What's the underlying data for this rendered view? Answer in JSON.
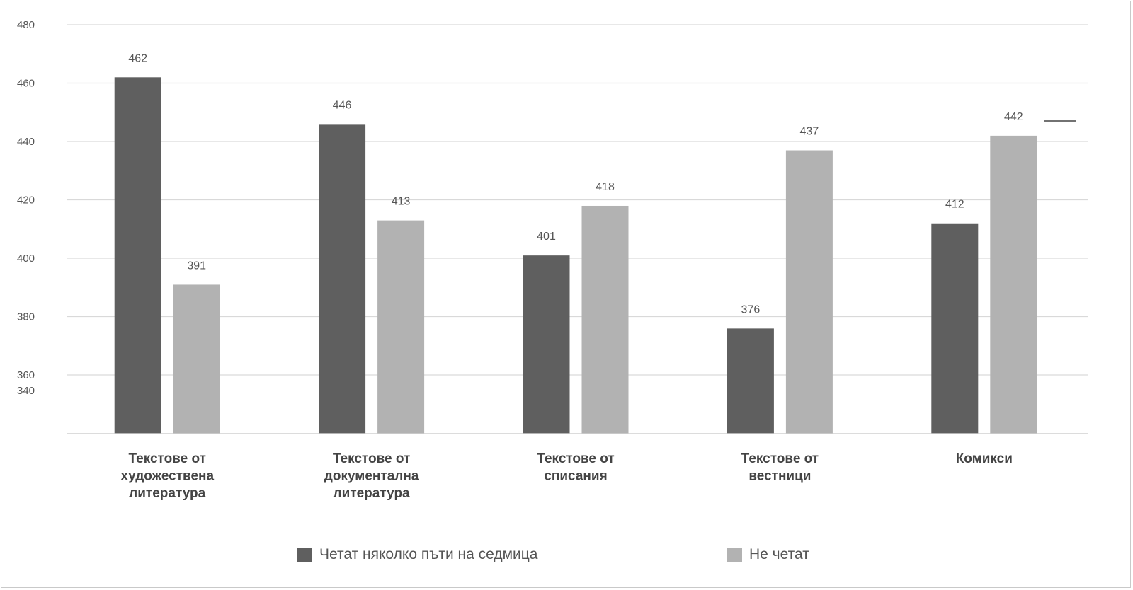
{
  "chart_data": {
    "type": "bar",
    "title": "",
    "xlabel": "",
    "ylabel": "",
    "categories": [
      "Текстове от художествена литература",
      "Текстове от документална литература",
      "Текстове от списания",
      "Текстове от вестници",
      "Комикси"
    ],
    "category_lines": [
      [
        "Текстове от",
        "художествена",
        "литература"
      ],
      [
        "Текстове от",
        "документална",
        "литература"
      ],
      [
        "Текстове от",
        "списания"
      ],
      [
        "Текстове от",
        "вестници"
      ],
      [
        "Комикси"
      ]
    ],
    "series": [
      {
        "name": "Четат няколко пъти на седмица",
        "values": [
          462,
          446,
          401,
          376,
          412
        ],
        "color": "#5f5f5f"
      },
      {
        "name": "Не четат",
        "values": [
          391,
          413,
          418,
          437,
          442
        ],
        "color": "#b2b2b2"
      }
    ],
    "ylim": [
      340,
      480
    ],
    "y_tick_labels": [
      "480",
      "460",
      "440",
      "420",
      "400",
      "380",
      "360",
      "340"
    ],
    "grid": true,
    "legend_position": "bottom"
  }
}
